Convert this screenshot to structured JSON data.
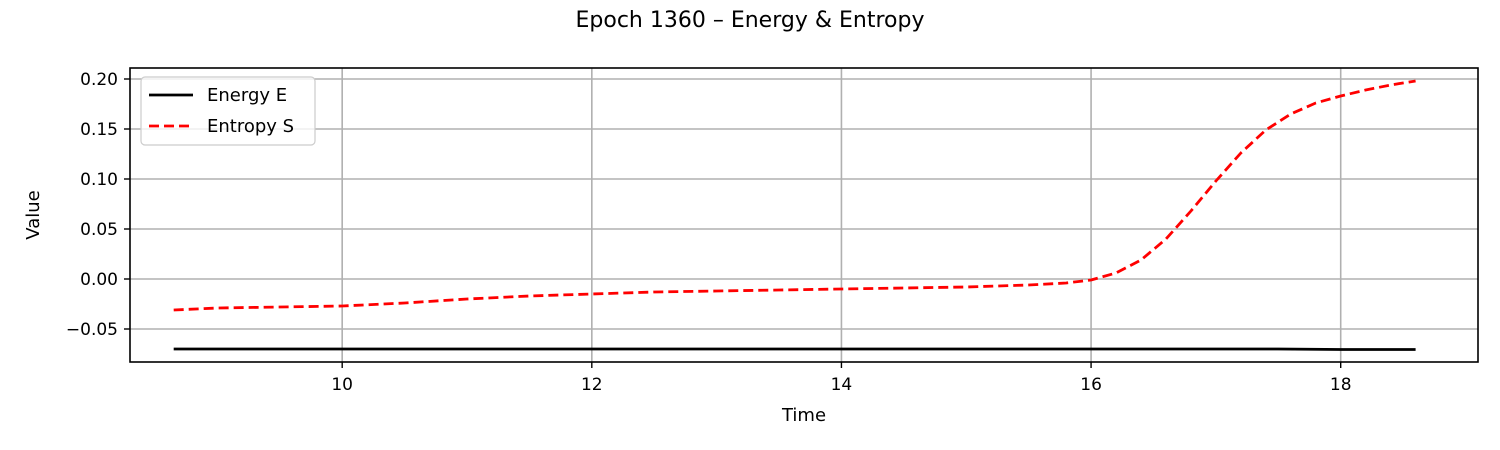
{
  "chart_data": {
    "type": "line",
    "title": "Epoch 1360 – Energy & Entropy",
    "xlabel": "Time",
    "ylabel": "Value",
    "xlim": [
      8.3,
      19.1
    ],
    "ylim": [
      -0.083,
      0.211
    ],
    "xticks": [
      10,
      12,
      14,
      16,
      18
    ],
    "xtick_labels": [
      "10",
      "12",
      "14",
      "16",
      "18"
    ],
    "yticks": [
      -0.05,
      0.0,
      0.05,
      0.1,
      0.15,
      0.2
    ],
    "ytick_labels": [
      "−0.05",
      "0.00",
      "0.05",
      "0.10",
      "0.15",
      "0.20"
    ],
    "grid": true,
    "legend_position": "top-left",
    "series": [
      {
        "name": "Energy E",
        "color": "#000000",
        "style": "solid",
        "x": [
          8.65,
          10,
          12,
          14,
          16,
          17.5,
          18.0,
          18.6
        ],
        "y": [
          -0.07,
          -0.07,
          -0.07,
          -0.07,
          -0.07,
          -0.07,
          -0.0705,
          -0.0705
        ]
      },
      {
        "name": "Entropy S",
        "color": "#ff0000",
        "style": "dashed",
        "x": [
          8.65,
          9.0,
          9.5,
          10.0,
          10.5,
          11.0,
          11.5,
          12.0,
          12.5,
          13.0,
          13.5,
          14.0,
          14.5,
          15.0,
          15.5,
          15.8,
          16.0,
          16.2,
          16.4,
          16.6,
          16.8,
          17.0,
          17.2,
          17.4,
          17.6,
          17.8,
          18.0,
          18.2,
          18.4,
          18.6
        ],
        "y": [
          -0.031,
          -0.029,
          -0.028,
          -0.027,
          -0.024,
          -0.02,
          -0.017,
          -0.015,
          -0.013,
          -0.012,
          -0.011,
          -0.01,
          -0.009,
          -0.008,
          -0.006,
          -0.004,
          -0.001,
          0.006,
          0.019,
          0.04,
          0.068,
          0.098,
          0.126,
          0.149,
          0.165,
          0.176,
          0.183,
          0.189,
          0.194,
          0.198
        ]
      }
    ]
  }
}
